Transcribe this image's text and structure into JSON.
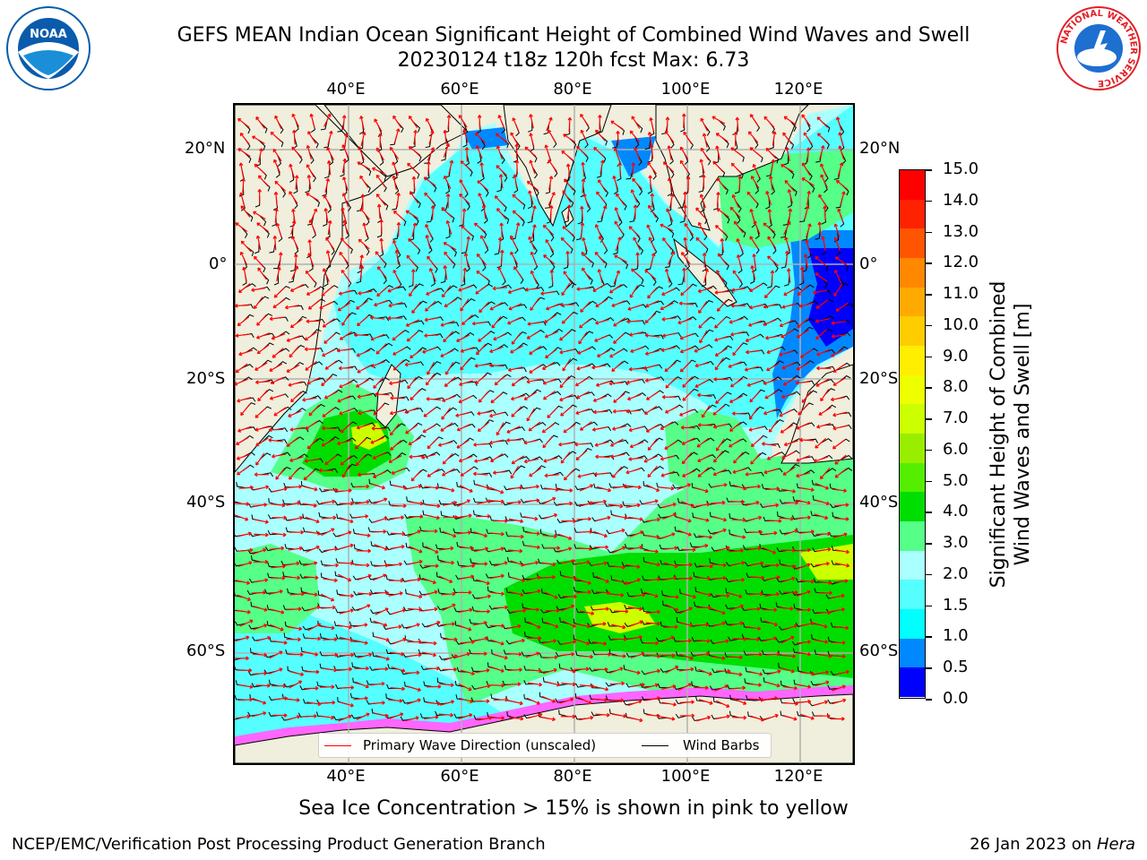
{
  "header": {
    "title": "GEFS MEAN Indian Ocean Significant Height of Combined Wind Waves and Swell",
    "subtitle": "20230124 t18z 120h fcst   Max: 6.73"
  },
  "logos": {
    "left": {
      "text": "NOAA",
      "ring": "NATIONAL OCEANIC AND ATMOSPHERIC ADMINISTRATION · U.S. DEPARTMENT OF COMMERCE",
      "color": "#0a5bab"
    },
    "right": {
      "ring": "NATIONAL WEATHER SERVICE",
      "color": "#e21f26"
    }
  },
  "map": {
    "lon_labels": [
      "40°E",
      "60°E",
      "80°E",
      "100°E",
      "120°E"
    ],
    "lat_labels": [
      "20°N",
      "0°",
      "20°S",
      "40°S",
      "60°S"
    ],
    "land_color": "#f0eedc",
    "grid_color": "#b0b0b0"
  },
  "legend": {
    "wave_direction": {
      "label": "Primary Wave Direction (unscaled)",
      "color": "#ff0000"
    },
    "wind_barbs": {
      "label": "Wind Barbs",
      "color": "#000000"
    }
  },
  "colorbar": {
    "title_line1": "Significant Height of Combined",
    "title_line2": "Wind Waves and Swell [m]",
    "ticks": [
      "15.0",
      "14.0",
      "13.0",
      "12.0",
      "11.0",
      "10.0",
      "9.0",
      "8.0",
      "7.0",
      "6.0",
      "5.0",
      "4.0",
      "3.0",
      "2.0",
      "1.5",
      "1.0",
      "0.5",
      "0.0"
    ],
    "bins": [
      "#ff0000",
      "#ff2200",
      "#ff5500",
      "#ff8800",
      "#ffaa00",
      "#ffcc00",
      "#ffee00",
      "#eeff00",
      "#ccff00",
      "#99ee00",
      "#55ee00",
      "#00dd00",
      "#55ff88",
      "#aaffff",
      "#55ffff",
      "#00ffff",
      "#0088ff",
      "#0000ff"
    ]
  },
  "footer": {
    "note": "Sea Ice Concentration > 15% is shown in pink to yellow",
    "left": "NCEP/EMC/Verification Post Processing Product Generation Branch",
    "right_prefix": "26 Jan 2023 on ",
    "right_host": "Hera"
  }
}
